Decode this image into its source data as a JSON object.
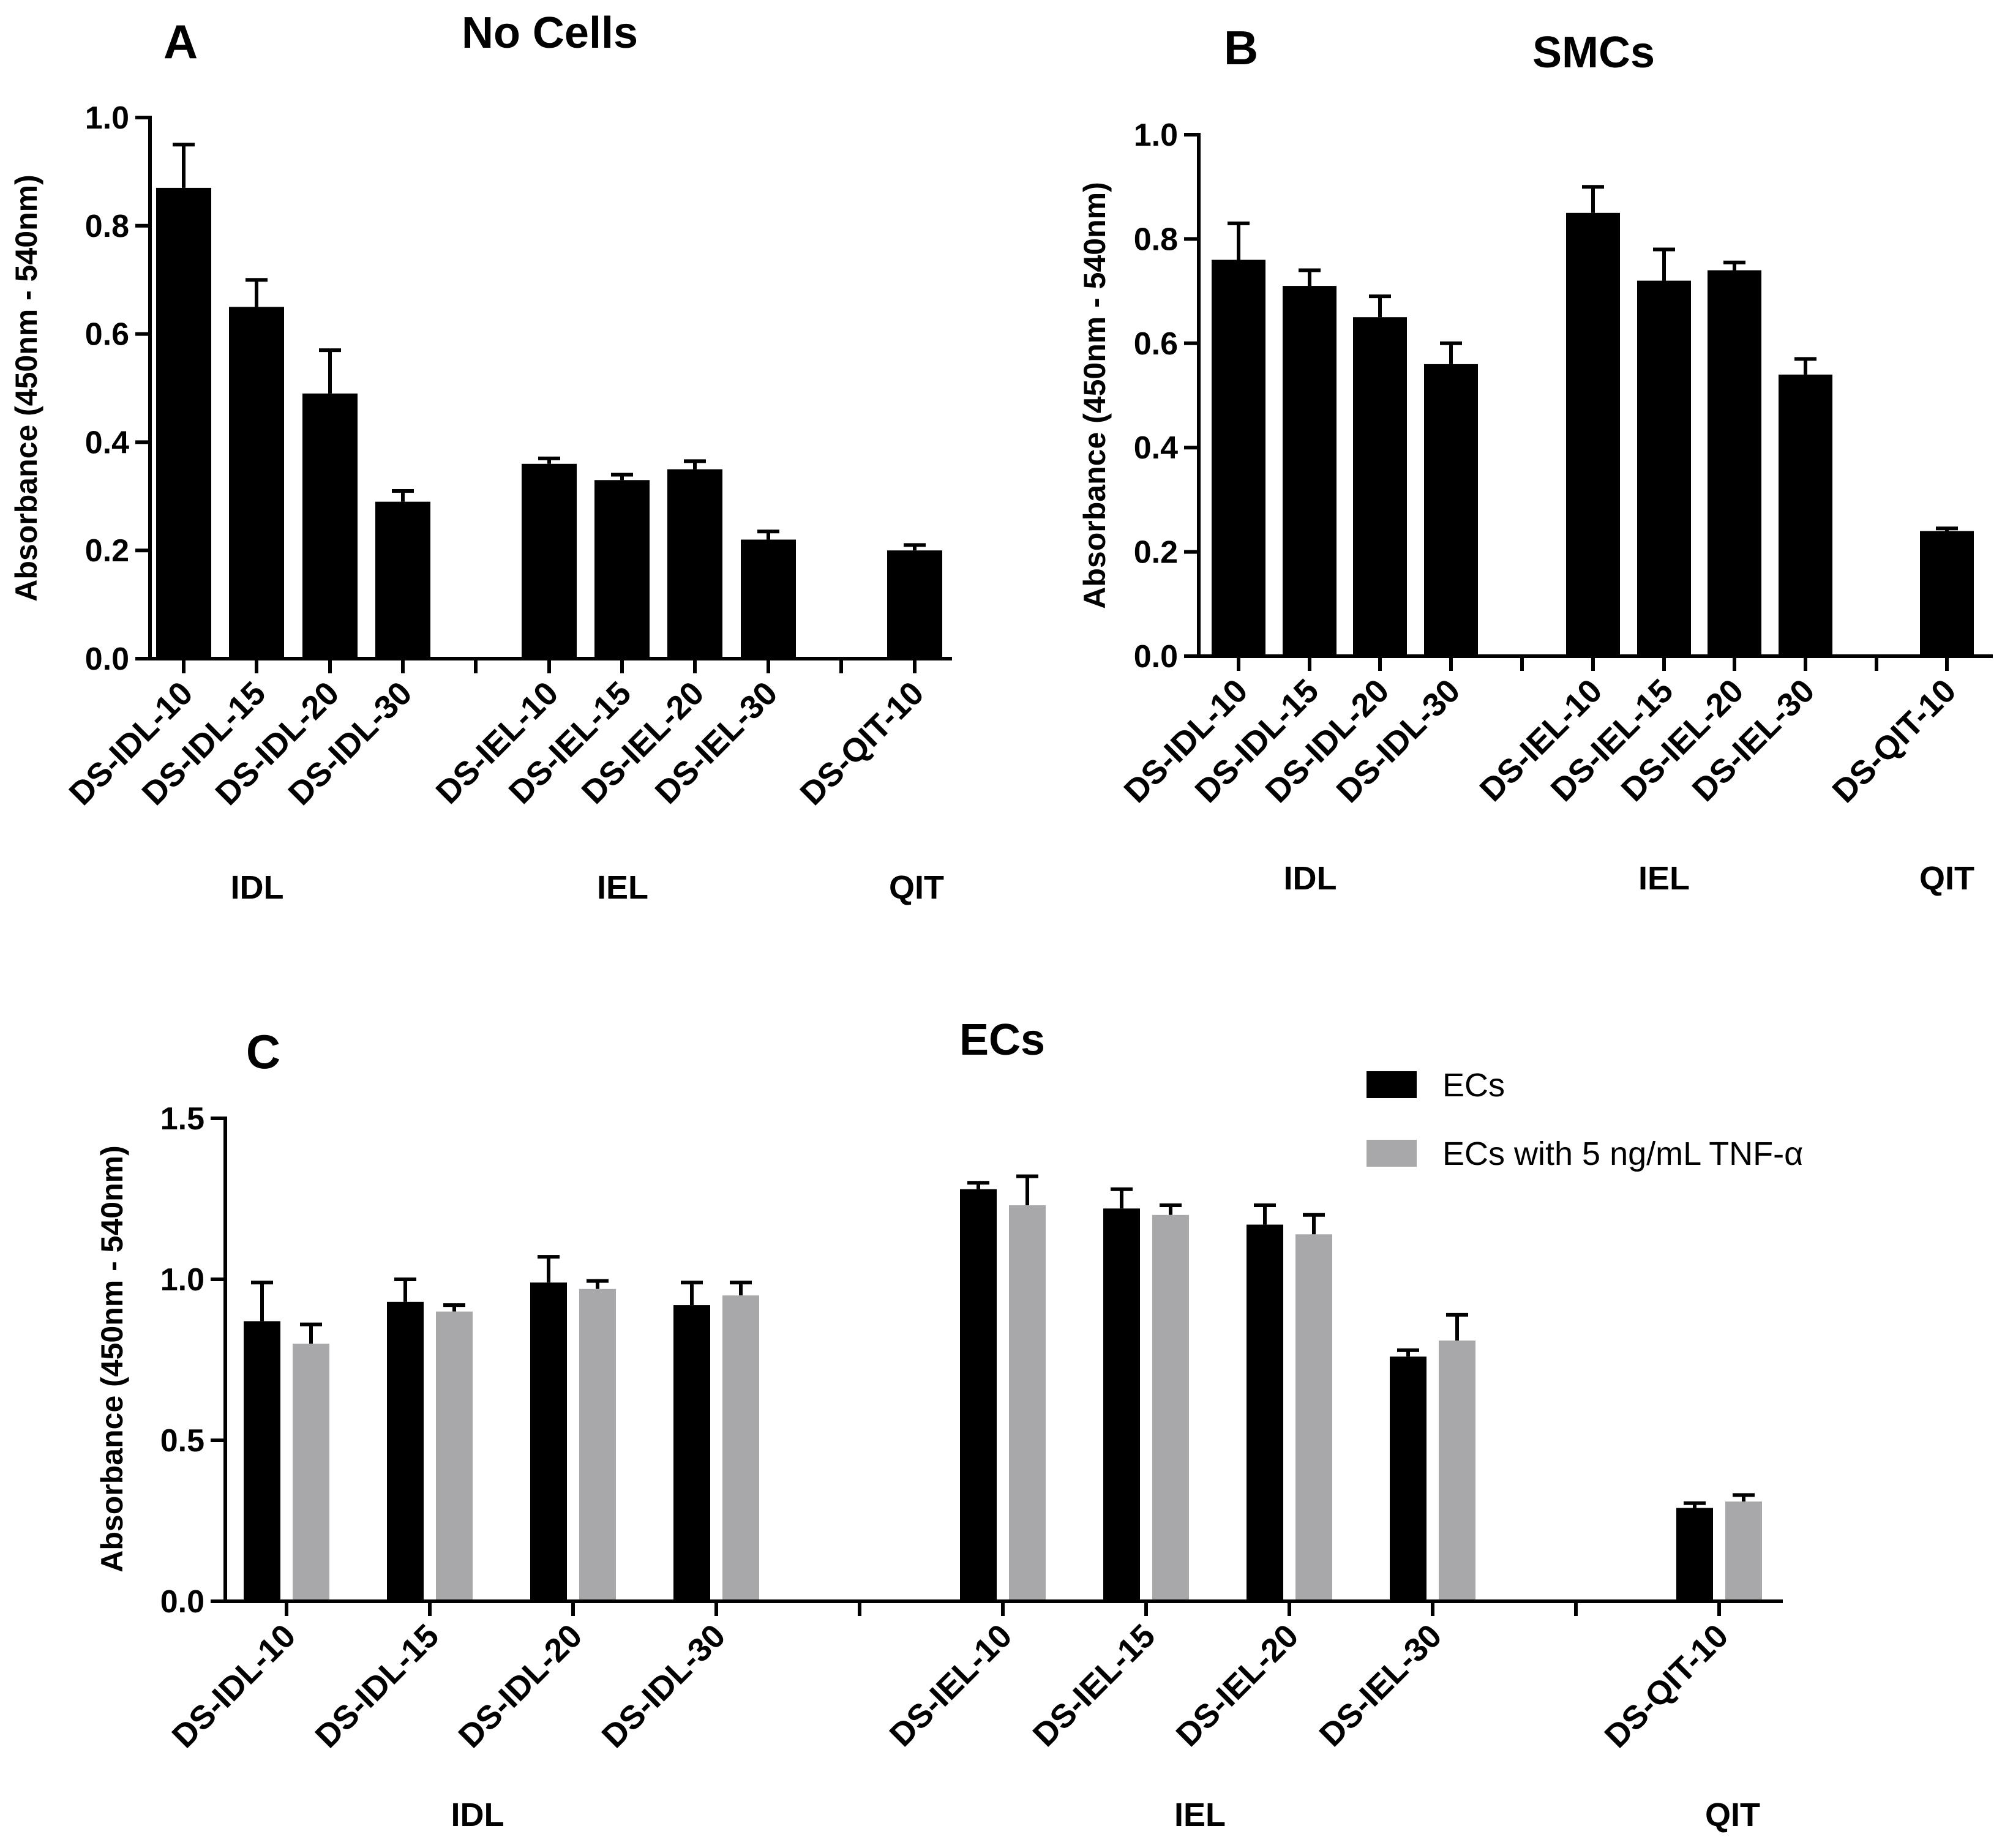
{
  "chart_data": [
    {
      "panel_label": "A",
      "type": "bar",
      "title": "No Cells",
      "ylabel": "Absorbance (450nm - 540nm)",
      "ylim": [
        0,
        1.0
      ],
      "yticks": [
        "0.0",
        "0.2",
        "0.4",
        "0.6",
        "0.8",
        "1.0"
      ],
      "grid": false,
      "categories": [
        "DS-IDL-10",
        "DS-IDL-15",
        "DS-IDL-20",
        "DS-IDL-30",
        "DS-IEL-10",
        "DS-IEL-15",
        "DS-IEL-20",
        "DS-IEL-30",
        "DS-QIT-10"
      ],
      "groups": [
        {
          "name": "IDL",
          "categories": [
            "DS-IDL-10",
            "DS-IDL-15",
            "DS-IDL-20",
            "DS-IDL-30"
          ]
        },
        {
          "name": "IEL",
          "categories": [
            "DS-IEL-10",
            "DS-IEL-15",
            "DS-IEL-20",
            "DS-IEL-30"
          ]
        },
        {
          "name": "QIT",
          "categories": [
            "DS-QIT-10"
          ]
        }
      ],
      "series": [
        {
          "color": "#000000",
          "values": [
            0.87,
            0.65,
            0.49,
            0.29,
            0.36,
            0.33,
            0.35,
            0.22,
            0.2
          ],
          "errors": [
            0.08,
            0.05,
            0.08,
            0.02,
            0.01,
            0.01,
            0.015,
            0.015,
            0.01
          ]
        }
      ]
    },
    {
      "panel_label": "B",
      "type": "bar",
      "title": "SMCs",
      "ylabel": "Absorbance (450nm - 540nm)",
      "ylim": [
        0,
        1.0
      ],
      "yticks": [
        "0.0",
        "0.2",
        "0.4",
        "0.6",
        "0.8",
        "1.0"
      ],
      "grid": false,
      "categories": [
        "DS-IDL-10",
        "DS-IDL-15",
        "DS-IDL-20",
        "DS-IDL-30",
        "DS-IEL-10",
        "DS-IEL-15",
        "DS-IEL-20",
        "DS-IEL-30",
        "DS-QIT-10"
      ],
      "groups": [
        {
          "name": "IDL",
          "categories": [
            "DS-IDL-10",
            "DS-IDL-15",
            "DS-IDL-20",
            "DS-IDL-30"
          ]
        },
        {
          "name": "IEL",
          "categories": [
            "DS-IEL-10",
            "DS-IEL-15",
            "DS-IEL-20",
            "DS-IEL-30"
          ]
        },
        {
          "name": "QIT",
          "categories": [
            "DS-QIT-10"
          ]
        }
      ],
      "series": [
        {
          "color": "#000000",
          "values": [
            0.76,
            0.71,
            0.65,
            0.56,
            0.85,
            0.72,
            0.74,
            0.54,
            0.24
          ],
          "errors": [
            0.07,
            0.03,
            0.04,
            0.04,
            0.05,
            0.06,
            0.015,
            0.03,
            0.005
          ]
        }
      ]
    },
    {
      "panel_label": "C",
      "type": "bar",
      "title": "ECs",
      "ylabel": "Absorbance (450nm - 540nm)",
      "ylim": [
        0,
        1.5
      ],
      "yticks": [
        "0.0",
        "0.5",
        "1.0",
        "1.5"
      ],
      "grid": false,
      "legend_position": "top-right",
      "categories": [
        "DS-IDL-10",
        "DS-IDL-15",
        "DS-IDL-20",
        "DS-IDL-30",
        "DS-IEL-10",
        "DS-IEL-15",
        "DS-IEL-20",
        "DS-IEL-30",
        "DS-QIT-10"
      ],
      "groups": [
        {
          "name": "IDL",
          "categories": [
            "DS-IDL-10",
            "DS-IDL-15",
            "DS-IDL-20",
            "DS-IDL-30"
          ]
        },
        {
          "name": "IEL",
          "categories": [
            "DS-IEL-10",
            "DS-IEL-15",
            "DS-IEL-20",
            "DS-IEL-30"
          ]
        },
        {
          "name": "QIT",
          "categories": [
            "DS-QIT-10"
          ]
        }
      ],
      "series": [
        {
          "name": "ECs",
          "color": "#000000",
          "values": [
            0.87,
            0.93,
            0.99,
            0.92,
            1.28,
            1.22,
            1.17,
            0.76,
            0.29
          ],
          "errors": [
            0.12,
            0.07,
            0.08,
            0.07,
            0.02,
            0.06,
            0.06,
            0.02,
            0.015
          ]
        },
        {
          "name": "ECs with 5 ng/mL TNF-α",
          "color": "#a8a8ab",
          "values": [
            0.8,
            0.9,
            0.97,
            0.95,
            1.23,
            1.2,
            1.14,
            0.81,
            0.31
          ],
          "errors": [
            0.06,
            0.02,
            0.025,
            0.04,
            0.09,
            0.03,
            0.06,
            0.08,
            0.02
          ]
        }
      ]
    }
  ]
}
